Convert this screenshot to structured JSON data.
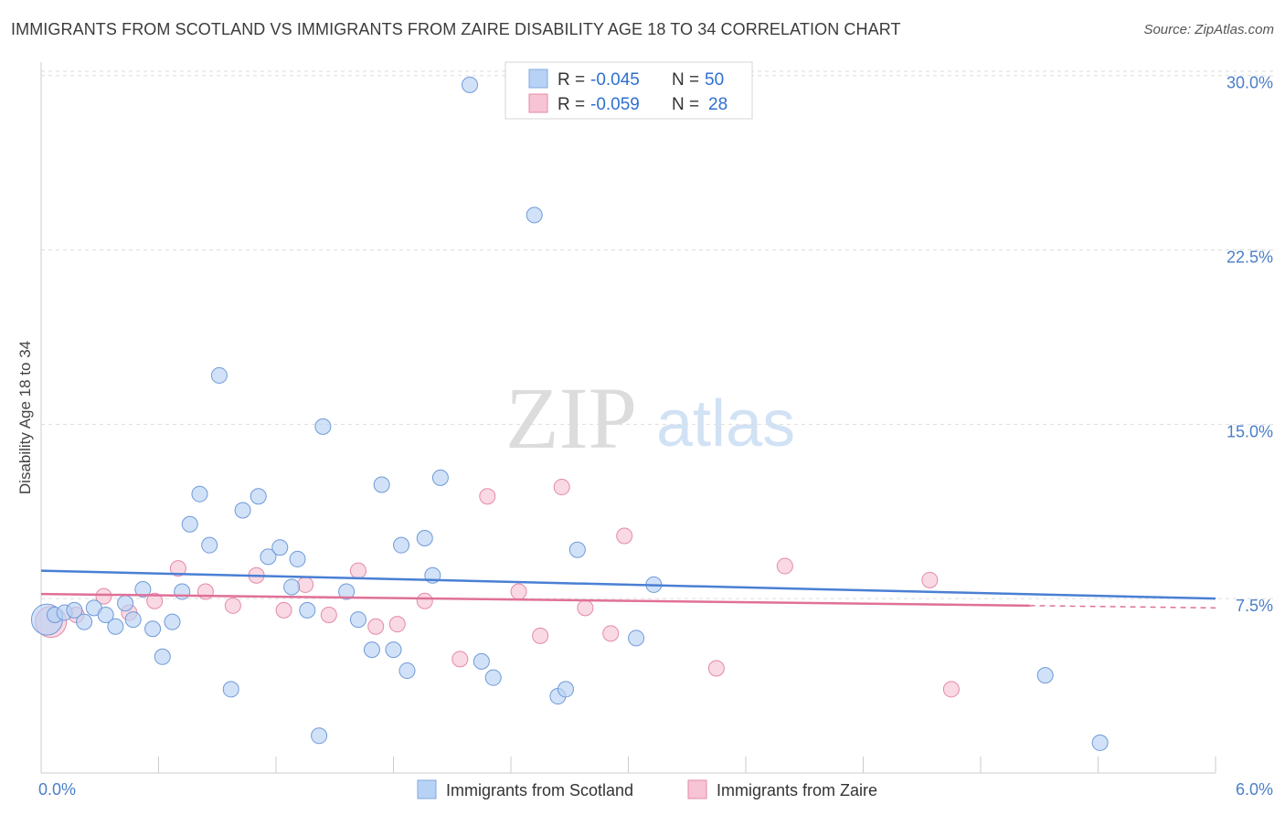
{
  "title": "IMMIGRANTS FROM SCOTLAND VS IMMIGRANTS FROM ZAIRE DISABILITY AGE 18 TO 34 CORRELATION CHART",
  "source": "Source: ZipAtlas.com",
  "watermark": {
    "zip": "ZIP",
    "atlas": "atlas"
  },
  "colors": {
    "blue": "#4a7fd4",
    "blue_fill": "#b8d2f5",
    "pink": "#e07098",
    "pink_fill": "#f6c4d4",
    "tick": "#4a7fc8"
  },
  "legend": {
    "rows": [
      {
        "r_label": "R = ",
        "r_value": "-0.045",
        "n_label": "N = ",
        "n_value": "50"
      },
      {
        "r_label": "R = ",
        "r_value": "-0.059",
        "n_label": "N = ",
        "n_value": "28"
      }
    ]
  },
  "chart_data": {
    "type": "scatter",
    "title": "IMMIGRANTS FROM SCOTLAND VS IMMIGRANTS FROM ZAIRE DISABILITY AGE 18 TO 34 CORRELATION CHART",
    "xlabel": "",
    "ylabel": "Disability Age 18 to 34",
    "xlim": [
      0,
      6.0
    ],
    "ylim": [
      0,
      30.5
    ],
    "x_tick_labels": [
      "0.0%",
      "6.0%"
    ],
    "y_ticks": [
      7.5,
      15.0,
      22.5,
      30.0
    ],
    "y_tick_labels": [
      "7.5%",
      "15.0%",
      "22.5%",
      "30.0%"
    ],
    "grid": true,
    "legend_position": "bottom",
    "series": [
      {
        "name": "Immigrants from Scotland",
        "r": -0.045,
        "n": 50,
        "trend": {
          "x": [
            0.0,
            6.0
          ],
          "y": [
            8.7,
            7.5
          ]
        },
        "points": [
          {
            "x": 0.03,
            "y": 6.6,
            "big": true
          },
          {
            "x": 0.07,
            "y": 6.8
          },
          {
            "x": 0.12,
            "y": 6.9
          },
          {
            "x": 0.17,
            "y": 7.0
          },
          {
            "x": 0.22,
            "y": 6.5
          },
          {
            "x": 0.27,
            "y": 7.1
          },
          {
            "x": 0.33,
            "y": 6.8
          },
          {
            "x": 0.38,
            "y": 6.3
          },
          {
            "x": 0.43,
            "y": 7.3
          },
          {
            "x": 0.47,
            "y": 6.6
          },
          {
            "x": 0.52,
            "y": 7.9
          },
          {
            "x": 0.57,
            "y": 6.2
          },
          {
            "x": 0.62,
            "y": 5.0
          },
          {
            "x": 0.67,
            "y": 6.5
          },
          {
            "x": 0.72,
            "y": 7.8
          },
          {
            "x": 0.76,
            "y": 10.7
          },
          {
            "x": 0.81,
            "y": 12.0
          },
          {
            "x": 0.86,
            "y": 9.8
          },
          {
            "x": 0.91,
            "y": 17.1
          },
          {
            "x": 0.97,
            "y": 3.6
          },
          {
            "x": 1.03,
            "y": 11.3
          },
          {
            "x": 1.11,
            "y": 11.9
          },
          {
            "x": 1.16,
            "y": 9.3
          },
          {
            "x": 1.22,
            "y": 9.7
          },
          {
            "x": 1.28,
            "y": 8.0
          },
          {
            "x": 1.31,
            "y": 9.2
          },
          {
            "x": 1.36,
            "y": 7.0
          },
          {
            "x": 1.42,
            "y": 1.6
          },
          {
            "x": 1.44,
            "y": 14.9
          },
          {
            "x": 1.56,
            "y": 7.8
          },
          {
            "x": 1.62,
            "y": 6.6
          },
          {
            "x": 1.69,
            "y": 5.3
          },
          {
            "x": 1.74,
            "y": 12.4
          },
          {
            "x": 1.8,
            "y": 5.3
          },
          {
            "x": 1.87,
            "y": 4.4
          },
          {
            "x": 1.84,
            "y": 9.8
          },
          {
            "x": 1.96,
            "y": 10.1
          },
          {
            "x": 2.0,
            "y": 8.5
          },
          {
            "x": 2.04,
            "y": 12.7
          },
          {
            "x": 2.19,
            "y": 29.6
          },
          {
            "x": 2.25,
            "y": 4.8
          },
          {
            "x": 2.31,
            "y": 4.1
          },
          {
            "x": 2.52,
            "y": 24.0
          },
          {
            "x": 2.64,
            "y": 3.3
          },
          {
            "x": 2.68,
            "y": 3.6
          },
          {
            "x": 2.74,
            "y": 9.6
          },
          {
            "x": 3.04,
            "y": 5.8
          },
          {
            "x": 3.13,
            "y": 8.1
          },
          {
            "x": 5.13,
            "y": 4.2
          },
          {
            "x": 5.41,
            "y": 1.3
          }
        ]
      },
      {
        "name": "Immigrants from Zaire",
        "r": -0.059,
        "n": 28,
        "trend": {
          "x": [
            0.0,
            5.05
          ],
          "y": [
            7.7,
            7.2
          ]
        },
        "trend_extension": {
          "x": [
            5.05,
            6.0
          ],
          "y": [
            7.2,
            7.1
          ]
        },
        "points": [
          {
            "x": 0.05,
            "y": 6.5,
            "big": true
          },
          {
            "x": 0.18,
            "y": 6.8
          },
          {
            "x": 0.32,
            "y": 7.6
          },
          {
            "x": 0.45,
            "y": 6.9
          },
          {
            "x": 0.58,
            "y": 7.4
          },
          {
            "x": 0.7,
            "y": 8.8
          },
          {
            "x": 0.84,
            "y": 7.8
          },
          {
            "x": 0.98,
            "y": 7.2
          },
          {
            "x": 1.1,
            "y": 8.5
          },
          {
            "x": 1.24,
            "y": 7.0
          },
          {
            "x": 1.35,
            "y": 8.1
          },
          {
            "x": 1.47,
            "y": 6.8
          },
          {
            "x": 1.62,
            "y": 8.7
          },
          {
            "x": 1.71,
            "y": 6.3
          },
          {
            "x": 1.82,
            "y": 6.4
          },
          {
            "x": 1.96,
            "y": 7.4
          },
          {
            "x": 2.14,
            "y": 4.9
          },
          {
            "x": 2.28,
            "y": 11.9
          },
          {
            "x": 2.44,
            "y": 7.8
          },
          {
            "x": 2.55,
            "y": 5.9
          },
          {
            "x": 2.66,
            "y": 12.3
          },
          {
            "x": 2.78,
            "y": 7.1
          },
          {
            "x": 2.91,
            "y": 6.0
          },
          {
            "x": 2.98,
            "y": 10.2
          },
          {
            "x": 3.45,
            "y": 4.5
          },
          {
            "x": 3.8,
            "y": 8.9
          },
          {
            "x": 4.54,
            "y": 8.3
          },
          {
            "x": 4.65,
            "y": 3.6
          }
        ]
      }
    ]
  }
}
